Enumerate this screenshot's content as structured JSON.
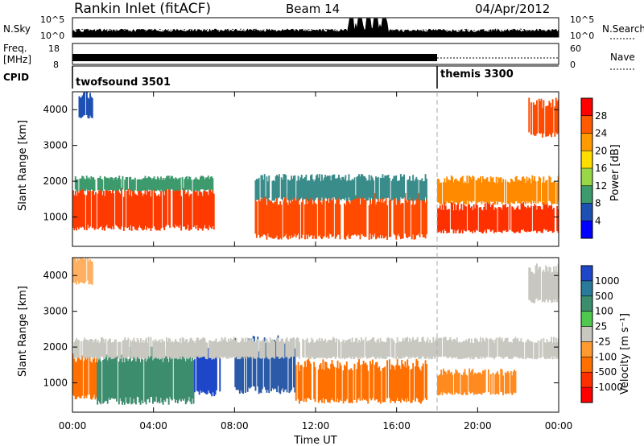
{
  "header": {
    "title": "Rankin Inlet (fitACF)",
    "beam": "Beam 14",
    "date": "04/Apr/2012"
  },
  "strip_labels": {
    "nsky": "N.Sky",
    "nsearch": "N.Search",
    "freq": "Freq.",
    "freq_unit": "[MHz]",
    "nave": "Nave",
    "cpid": "CPID",
    "nsky_ticks": [
      "10^5",
      "10^0"
    ],
    "freq_ticks": [
      "18",
      "8"
    ],
    "nave_ticks": [
      "60",
      "0"
    ]
  },
  "cpid_modes": [
    {
      "label": "twofsound 3501",
      "start_h": 0,
      "end_h": 18
    },
    {
      "label": "themis 3300",
      "start_h": 18,
      "end_h": 24
    }
  ],
  "colorbars": {
    "power": {
      "label": "Power [dB]",
      "ticks": [
        "28",
        "24",
        "20",
        "16",
        "12",
        "8",
        "4"
      ],
      "colors": [
        "#ff0000",
        "#ff5a00",
        "#ff9a00",
        "#ffdd00",
        "#98d848",
        "#3c9a6c",
        "#1e50b4",
        "#0000ff"
      ]
    },
    "velocity": {
      "label": "Velocity [m s⁻¹]",
      "ticks": [
        "1000",
        "500",
        "100",
        "25",
        "-25",
        "-100",
        "-500",
        "-1000"
      ],
      "colors": [
        "#1e46c8",
        "#2a7a9a",
        "#3c8c6e",
        "#50c850",
        "#c8c8c0",
        "#ff9a30",
        "#ff7000",
        "#ff3000",
        "#ff0000"
      ]
    }
  },
  "chart_data": {
    "type": "heatmap",
    "xlabel": "Time UT",
    "x_ticks": [
      "00:00",
      "04:00",
      "08:00",
      "12:00",
      "16:00",
      "20:00",
      "00:00"
    ],
    "xlim_hours": [
      0,
      24
    ],
    "ylabel": "Slant Range [km]",
    "y_ticks": [
      1000,
      2000,
      3000,
      4000
    ],
    "ylim_km": [
      180,
      4500
    ],
    "panels": [
      {
        "name": "power",
        "bands": [
          {
            "t0": 0.0,
            "t1": 7.0,
            "r0": 700,
            "r1": 1750,
            "level": 24,
            "color": "#ff3a00"
          },
          {
            "t0": 0.0,
            "t1": 7.0,
            "r0": 1750,
            "r1": 2100,
            "level": 12,
            "color": "#3c9a6c"
          },
          {
            "t0": 9.0,
            "t1": 17.5,
            "r0": 450,
            "r1": 1500,
            "level": 22,
            "color": "#ff4a00"
          },
          {
            "t0": 9.0,
            "t1": 17.5,
            "r0": 1500,
            "r1": 2100,
            "level": 10,
            "color": "#3a8c8a"
          },
          {
            "t0": 18.0,
            "t1": 24.0,
            "r0": 600,
            "r1": 1300,
            "level": 22,
            "color": "#ff3000"
          },
          {
            "t0": 18.0,
            "t1": 24.0,
            "r0": 1400,
            "r1": 2050,
            "level": 18,
            "color": "#ff8a00"
          },
          {
            "t0": 22.5,
            "t1": 24.0,
            "r0": 3300,
            "r1": 4200,
            "level": 26,
            "color": "#ff4a00"
          },
          {
            "t0": 0.3,
            "t1": 1.0,
            "r0": 3800,
            "r1": 4400,
            "level": 8,
            "color": "#1e50b4"
          }
        ]
      },
      {
        "name": "velocity",
        "bands": [
          {
            "t0": 0.0,
            "t1": 1.2,
            "r0": 600,
            "r1": 1700,
            "level": -300,
            "color": "#ff7000"
          },
          {
            "t0": 1.2,
            "t1": 6.0,
            "r0": 500,
            "r1": 1800,
            "level": 150,
            "color": "#3c8c6e"
          },
          {
            "t0": 6.0,
            "t1": 7.3,
            "r0": 700,
            "r1": 1800,
            "level": 600,
            "color": "#1e46c8"
          },
          {
            "t0": 8.0,
            "t1": 11.0,
            "r0": 800,
            "r1": 2100,
            "level": 500,
            "color": "#2a5aa8"
          },
          {
            "t0": 11.0,
            "t1": 17.5,
            "r0": 500,
            "r1": 1500,
            "level": -300,
            "color": "#ff7000"
          },
          {
            "t0": 0.0,
            "t1": 24.0,
            "r0": 1700,
            "r1": 2200,
            "level": 0,
            "color": "#c8c8c0"
          },
          {
            "t0": 18.0,
            "t1": 22.0,
            "r0": 700,
            "r1": 1300,
            "level": -400,
            "color": "#ff8a20"
          },
          {
            "t0": 22.5,
            "t1": 24.0,
            "r0": 3300,
            "r1": 4200,
            "level": 0,
            "color": "#c8c8c0"
          },
          {
            "t0": 0.0,
            "t1": 1.0,
            "r0": 3800,
            "r1": 4500,
            "level": -150,
            "color": "#ffb060"
          }
        ]
      }
    ],
    "nsky_peak_hours": [
      13.8,
      14.2,
      14.6,
      15.0,
      15.4
    ]
  }
}
